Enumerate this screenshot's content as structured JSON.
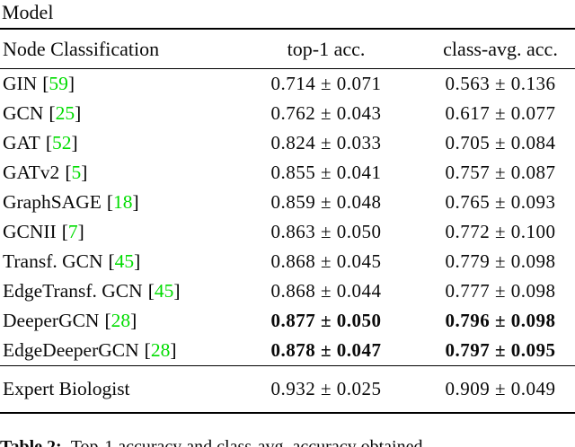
{
  "page": {
    "top_label": "Model",
    "caption": {
      "label": "Table 2:",
      "text": "Top-1 accuracy and class-avg. accuracy obtained"
    }
  },
  "table": {
    "headers": {
      "col1": "Node Classification",
      "col2": "top-1 acc.",
      "col3": "class-avg. acc."
    },
    "citation_color": "#00DC00",
    "rows": [
      {
        "model": "GIN",
        "cite": "59",
        "top1": "0.714 ± 0.071",
        "classavg": "0.563 ± 0.136"
      },
      {
        "model": "GCN",
        "cite": "25",
        "top1": "0.762 ± 0.043",
        "classavg": "0.617 ± 0.077"
      },
      {
        "model": "GAT",
        "cite": "52",
        "top1": "0.824 ± 0.033",
        "classavg": "0.705 ± 0.084"
      },
      {
        "model": "GATv2",
        "cite": "5",
        "top1": "0.855 ± 0.041",
        "classavg": "0.757 ± 0.087"
      },
      {
        "model": "GraphSAGE",
        "cite": "18",
        "top1": "0.859 ± 0.048",
        "classavg": "0.765 ± 0.093"
      },
      {
        "model": "GCNII",
        "cite": "7",
        "top1": "0.863 ± 0.050",
        "classavg": "0.772 ± 0.100"
      },
      {
        "model": "Transf. GCN",
        "cite": "45",
        "top1": "0.868 ± 0.045",
        "classavg": "0.779 ± 0.098"
      },
      {
        "model": "EdgeTransf. GCN",
        "cite": "45",
        "top1": "0.868 ± 0.044",
        "classavg": "0.777 ± 0.098"
      },
      {
        "model": "DeeperGCN",
        "cite": "28",
        "top1": "0.877 ± 0.050",
        "classavg": "0.796 ± 0.098",
        "bold": true
      },
      {
        "model": "EdgeDeeperGCN",
        "cite": "28",
        "top1": "0.878 ± 0.047",
        "classavg": "0.797 ± 0.095",
        "bold": true
      }
    ],
    "expert_row": {
      "model": "Expert Biologist",
      "top1": "0.932 ± 0.025",
      "classavg": "0.909 ± 0.049"
    }
  }
}
